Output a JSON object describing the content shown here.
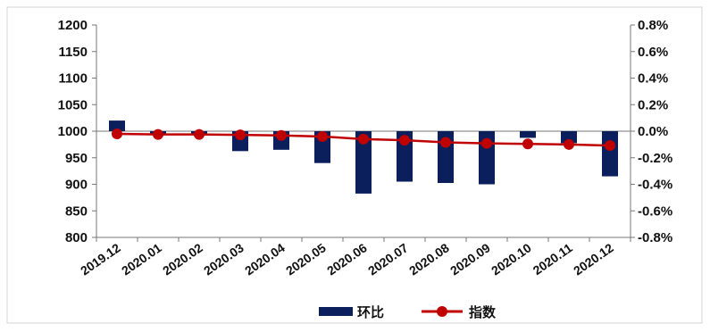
{
  "chart_data": {
    "type": "bar+line",
    "categories": [
      "2019.12",
      "2020.01",
      "2020.02",
      "2020.03",
      "2020.04",
      "2020.05",
      "2020.06",
      "2020.07",
      "2020.08",
      "2020.09",
      "2020.10",
      "2020.11",
      "2020.12"
    ],
    "series": [
      {
        "name": "环比",
        "type": "bar",
        "axis": "right",
        "values": [
          0.08,
          -0.03,
          -0.03,
          -0.15,
          -0.14,
          -0.24,
          -0.47,
          -0.38,
          -0.39,
          -0.4,
          -0.05,
          -0.09,
          -0.34
        ],
        "color": "#0a1f5c"
      },
      {
        "name": "指数",
        "type": "line",
        "axis": "left",
        "values": [
          995,
          994,
          994,
          993,
          992,
          990,
          985,
          983,
          979,
          977,
          976,
          975,
          973
        ],
        "color": "#c00000"
      }
    ],
    "y_left": {
      "min": 800,
      "max": 1200,
      "ticks": [
        "1200",
        "1150",
        "1100",
        "1050",
        "1000",
        "950",
        "900",
        "850",
        "800"
      ]
    },
    "y_right": {
      "min": -0.8,
      "max": 0.8,
      "ticks": [
        "0.8%",
        "0.6%",
        "0.4%",
        "0.2%",
        "0.0%",
        "-0.2%",
        "-0.4%",
        "-0.6%",
        "-0.8%"
      ]
    },
    "grid": false,
    "legend": "bottom"
  }
}
